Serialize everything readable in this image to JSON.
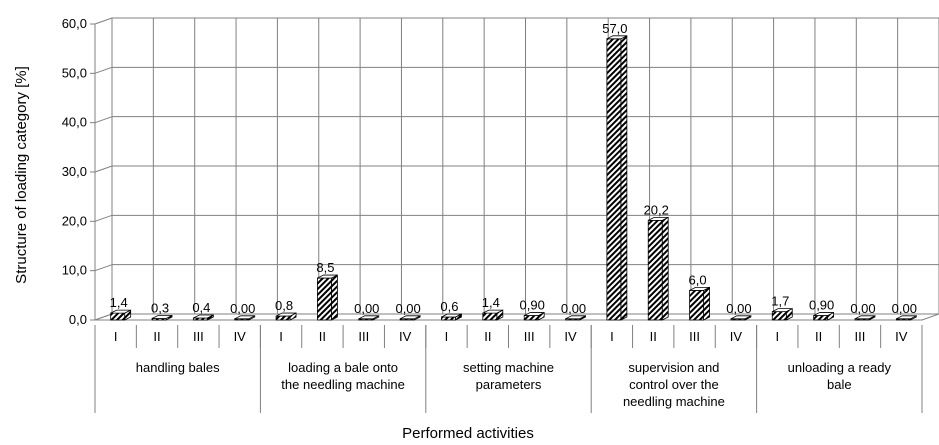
{
  "chart_data": {
    "type": "bar",
    "title": "",
    "xlabel": "Performed activities",
    "ylabel": "Structure of loading category [%]",
    "ylim": [
      0,
      60
    ],
    "yticks": [
      "0,0",
      "10,0",
      "20,0",
      "30,0",
      "40,0",
      "50,0",
      "60,0"
    ],
    "grid": true,
    "legend": "none",
    "groups": [
      {
        "name": "handling bales",
        "name_lines": [
          "handling bales"
        ],
        "categories": [
          "I",
          "II",
          "III",
          "IV"
        ],
        "values": [
          1.4,
          0.3,
          0.4,
          0.0
        ],
        "labels": [
          "1,4",
          "0,3",
          "0,4",
          "0,00"
        ]
      },
      {
        "name": "loading a bale onto the needling machine",
        "name_lines": [
          "loading a bale onto",
          "the needling machine"
        ],
        "categories": [
          "I",
          "II",
          "III",
          "IV"
        ],
        "values": [
          0.8,
          8.5,
          0.0,
          0.0
        ],
        "labels": [
          "0,8",
          "8,5",
          "0,00",
          "0,00"
        ]
      },
      {
        "name": "setting machine parameters",
        "name_lines": [
          "setting machine",
          "parameters"
        ],
        "categories": [
          "I",
          "II",
          "III",
          "IV"
        ],
        "values": [
          0.6,
          1.4,
          0.9,
          0.0
        ],
        "labels": [
          "0,6",
          "1,4",
          "0,90",
          "0,00"
        ]
      },
      {
        "name": "supervision and control over the needling machine",
        "name_lines": [
          "supervision and",
          "control over the",
          "needling machine"
        ],
        "categories": [
          "I",
          "II",
          "III",
          "IV"
        ],
        "values": [
          57.0,
          20.2,
          6.0,
          0.0
        ],
        "labels": [
          "57,0",
          "20,2",
          "6,0",
          "0,00"
        ]
      },
      {
        "name": "unloading a ready bale",
        "name_lines": [
          "unloading a ready",
          "bale"
        ],
        "categories": [
          "I",
          "II",
          "III",
          "IV"
        ],
        "values": [
          1.7,
          0.9,
          0.0,
          0.0
        ],
        "labels": [
          "1,7",
          "0,90",
          "0,00",
          "0,00"
        ]
      }
    ]
  }
}
